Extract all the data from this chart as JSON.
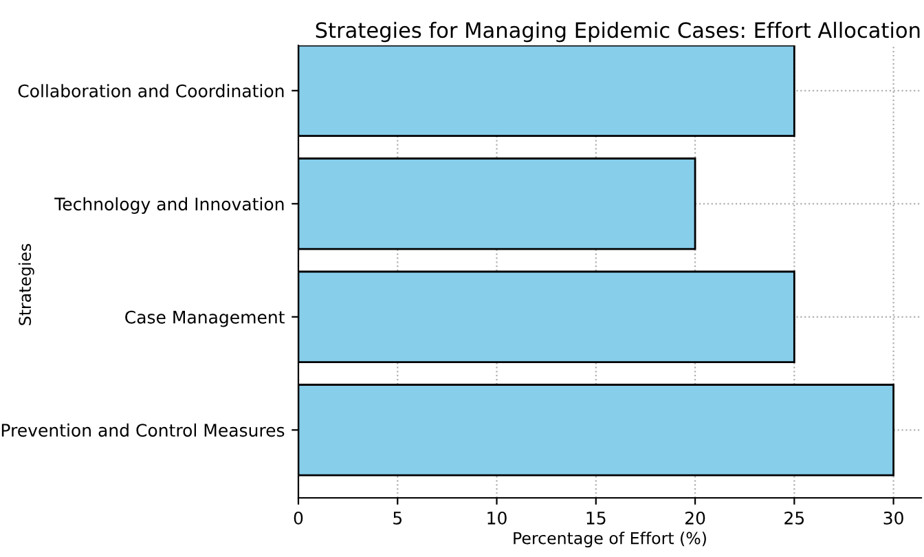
{
  "chart_data": {
    "type": "bar",
    "orientation": "horizontal",
    "title": "Strategies for Managing Epidemic Cases: Effort Allocation",
    "xlabel": "Percentage of Effort (%)",
    "ylabel": "Strategies",
    "categories": [
      "Collaboration and Coordination",
      "Technology and Innovation",
      "Case Management",
      "Prevention and Control Measures"
    ],
    "values": [
      25,
      20,
      25,
      30
    ],
    "color": "#87ceeb",
    "xlim": [
      0,
      31.4
    ],
    "xticks": [
      0,
      5,
      10,
      15,
      20,
      25,
      30
    ],
    "grid": true
  }
}
